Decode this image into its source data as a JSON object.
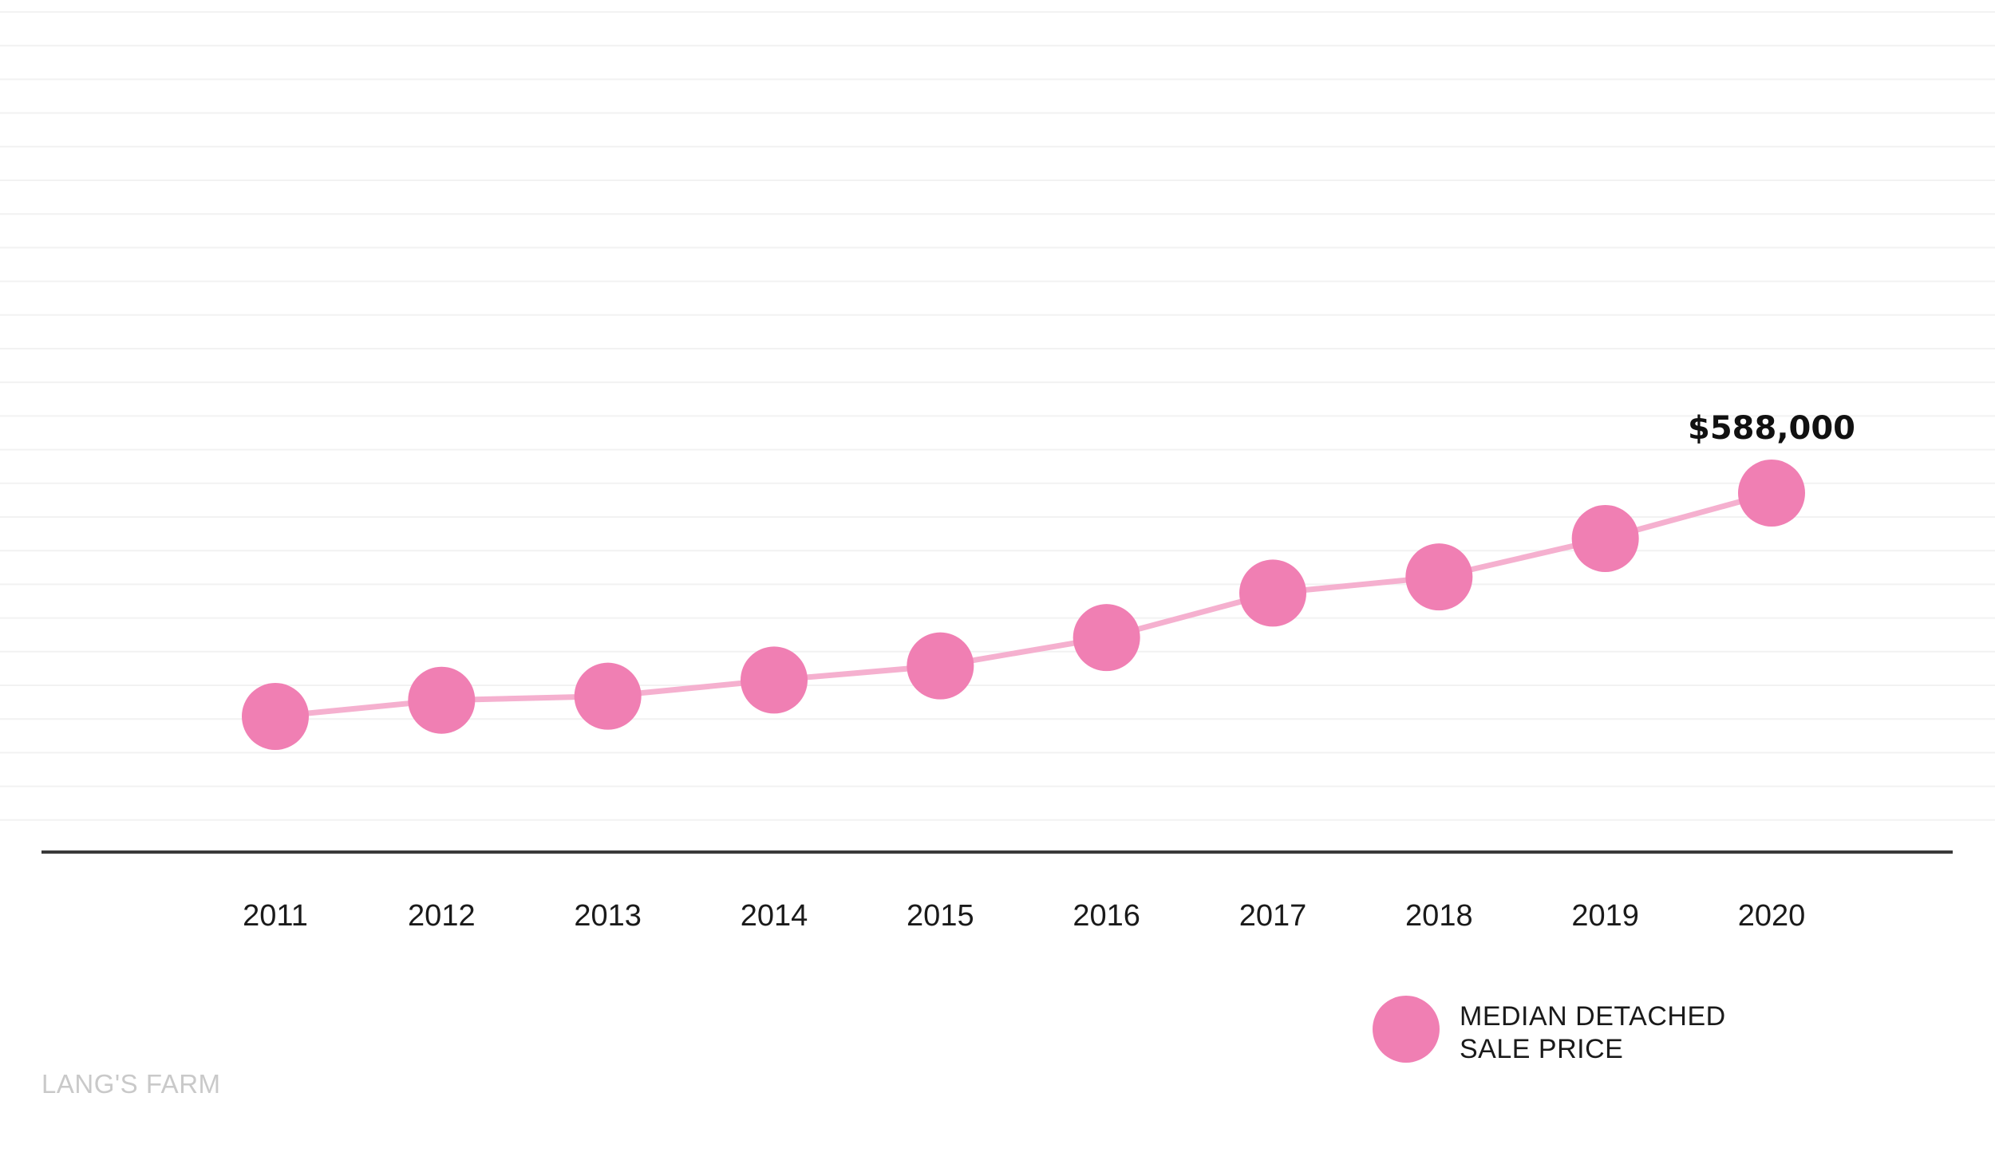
{
  "chart_data": {
    "type": "line",
    "x": [
      "2011",
      "2012",
      "2013",
      "2014",
      "2015",
      "2016",
      "2017",
      "2018",
      "2019",
      "2020"
    ],
    "series": [
      {
        "name": "MEDIAN DETACHED SALE PRICE",
        "values": [
          306000,
          314000,
          316000,
          324000,
          331000,
          345000,
          367000,
          375000,
          394000,
          588000
        ]
      }
    ],
    "annotations": [
      {
        "x": "2020",
        "text": "$588,000"
      }
    ],
    "xlabel": "",
    "ylabel": "",
    "grid": true,
    "legend_position": "bottom-right"
  },
  "legend": {
    "line1": "MEDIAN DETACHED",
    "line2": "SALE PRICE"
  },
  "source": "LANG'S FARM",
  "colors": {
    "marker": "#f07fb3",
    "line": "#f5b0cf",
    "grid": "#f2f2f2",
    "axis": "#3a3a3a",
    "text": "#1a1a1a",
    "source": "#c9c9c9"
  }
}
